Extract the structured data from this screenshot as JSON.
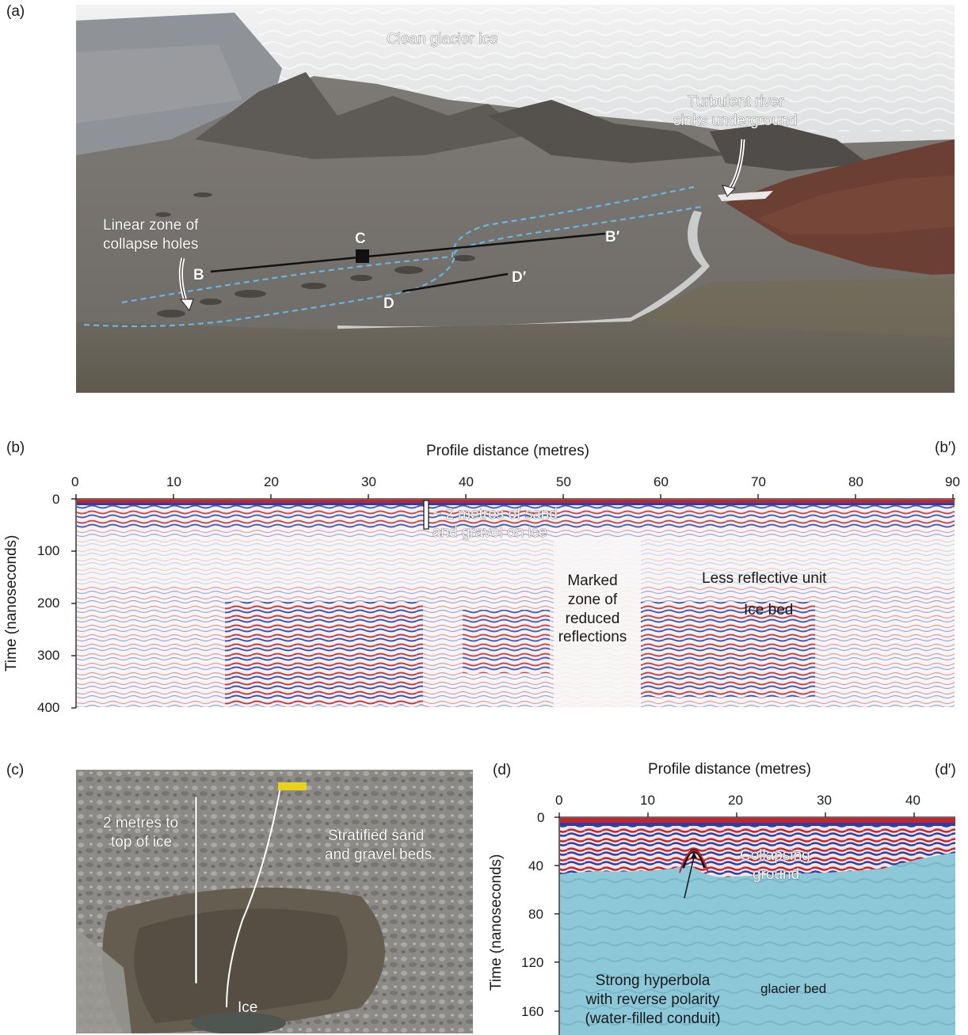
{
  "panel_a": {
    "letter": "(a)",
    "labels": {
      "clean_ice": "Clean glacier ice",
      "turbulent_1": "Turbulent river",
      "turbulent_2": "sinks underground",
      "linear_1": "Linear zone of",
      "linear_2": "collapse holes",
      "c": "C",
      "b": "B",
      "b_prime": "B′",
      "d": "D",
      "d_prime": "D′"
    },
    "colors": {
      "dash_line": "#6ab4e6",
      "ice": "#dcdcdc",
      "ground": "#6e6a64",
      "moraine": "#6b3f33"
    }
  },
  "panel_b": {
    "letter": "(b)",
    "letter_right": "(b′)",
    "x_title": "Profile distance (metres)",
    "y_title": "Time (nanoseconds)",
    "x_ticks": [
      "0",
      "10",
      "20",
      "30",
      "40",
      "50",
      "60",
      "70",
      "80",
      "90"
    ],
    "y_ticks": [
      "0",
      "100",
      "200",
      "300",
      "400"
    ],
    "annotations": {
      "sand_1": "~ 2 metres of sand",
      "sand_2": "and gravel on ice",
      "marked_1": "Marked",
      "marked_2": "zone of",
      "marked_3": "reduced",
      "marked_4": "reflections",
      "less": "Less reflective unit",
      "icebed": "Ice bed"
    }
  },
  "panel_c": {
    "letter": "(c)",
    "labels": {
      "two_m_1": "2 metres to",
      "two_m_2": "top of ice",
      "strat_1": "Stratified sand",
      "strat_2": "and gravel beds",
      "ice": "Ice"
    }
  },
  "panel_d": {
    "letter": "(d)",
    "letter_right": "(d′)",
    "x_title": "Profile distance (metres)",
    "y_title": "Time (nanoseconds)",
    "x_ticks": [
      "0",
      "10",
      "20",
      "30",
      "40"
    ],
    "y_ticks": [
      "0",
      "40",
      "80",
      "120",
      "160"
    ],
    "annotations": {
      "collapse_1": "Collapsing",
      "collapse_2": "ground",
      "hyp_1": "Strong hyperbola",
      "hyp_2": "with reverse polarity",
      "hyp_3": "(water-filled conduit)",
      "glacier_bed": "glacier bed"
    },
    "colors": {
      "bed_fill": "#8cc8d8"
    }
  }
}
